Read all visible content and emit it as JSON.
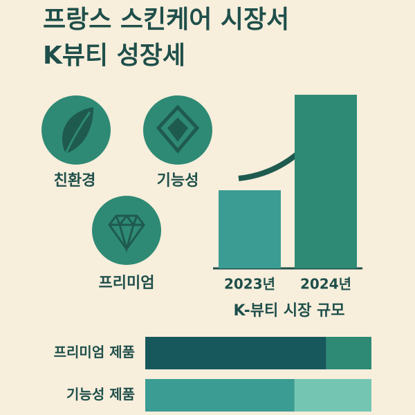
{
  "title_lines": [
    "프랑스 스킨케어 시장서",
    "K뷰티 성장세"
  ],
  "features": [
    "친환경",
    "기능성",
    "프리미엄"
  ],
  "chart_data": [
    {
      "type": "bar",
      "categories": [
        "2023년",
        "2024년"
      ],
      "values": [
        45,
        100
      ],
      "ylim": [
        0,
        100
      ],
      "color": [
        "#3a9c93",
        "#2e8a74"
      ],
      "xlabel": "K-뷰티 시장 규모"
    },
    {
      "type": "stacked-bar-h",
      "categories": [
        "프리미엄 제품",
        "기능성 제품"
      ],
      "xlim": [
        0,
        100
      ],
      "rows": [
        {
          "values": [
            80,
            20
          ],
          "colors": [
            "#17585c",
            "#2e8a74"
          ]
        },
        {
          "values": [
            66,
            34
          ],
          "colors": [
            "#3a9c93",
            "#74c6b2"
          ]
        }
      ]
    }
  ]
}
